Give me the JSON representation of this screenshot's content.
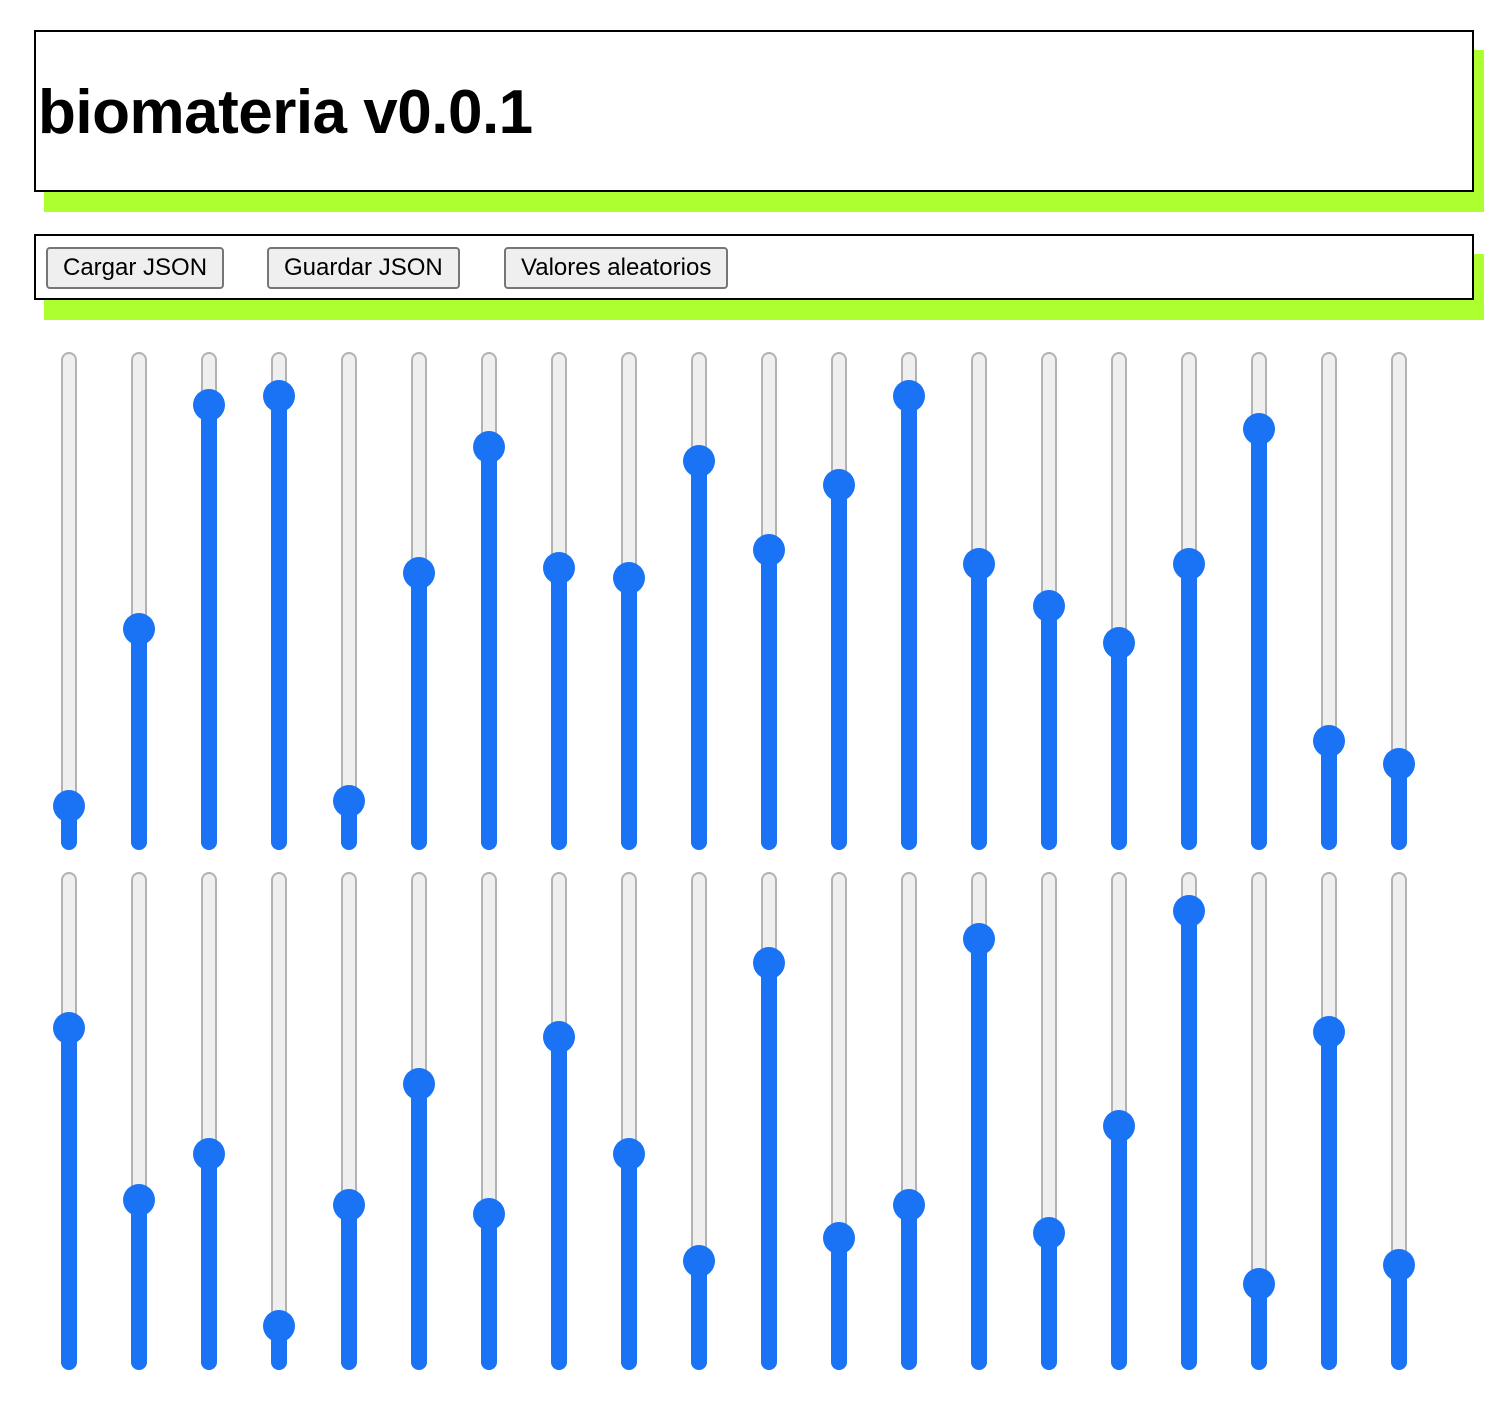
{
  "header": {
    "title": "biomateria v0.0.1"
  },
  "toolbar": {
    "load_label": "Cargar JSON",
    "save_label": "Guardar JSON",
    "random_label": "Valores aleatorios"
  },
  "colors": {
    "accent_shadow": "#adff2f",
    "slider_fill": "#1a73f5",
    "slider_track": "#efefef"
  },
  "sliders": {
    "row1": [
      0.06,
      0.44,
      0.92,
      0.94,
      0.07,
      0.56,
      0.83,
      0.57,
      0.55,
      0.8,
      0.61,
      0.75,
      0.94,
      0.58,
      0.49,
      0.41,
      0.58,
      0.87,
      0.2,
      0.15
    ],
    "row2": [
      0.7,
      0.33,
      0.43,
      0.06,
      0.32,
      0.58,
      0.3,
      0.68,
      0.43,
      0.2,
      0.84,
      0.25,
      0.32,
      0.89,
      0.26,
      0.49,
      0.95,
      0.15,
      0.69,
      0.19
    ]
  }
}
